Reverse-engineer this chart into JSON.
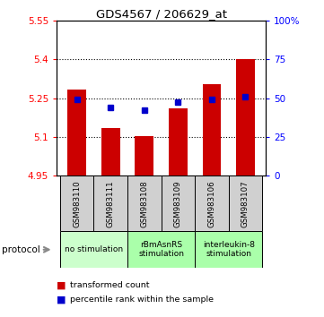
{
  "title": "GDS4567 / 206629_at",
  "samples": [
    "GSM983110",
    "GSM983111",
    "GSM983108",
    "GSM983109",
    "GSM983106",
    "GSM983107"
  ],
  "bar_values": [
    5.285,
    5.135,
    5.105,
    5.21,
    5.305,
    5.4
  ],
  "bar_bottom": 4.95,
  "percentile_values": [
    5.245,
    5.215,
    5.205,
    5.235,
    5.245,
    5.255
  ],
  "ymin": 4.95,
  "ymax": 5.55,
  "y2min": 0,
  "y2max": 100,
  "yticks": [
    4.95,
    5.1,
    5.25,
    5.4,
    5.55
  ],
  "ytick_labels": [
    "4.95",
    "5.1",
    "5.25",
    "5.4",
    "5.55"
  ],
  "y2ticks": [
    0,
    25,
    50,
    75,
    100
  ],
  "y2tick_labels": [
    "0",
    "25",
    "50",
    "75",
    "100%"
  ],
  "bar_color": "#cc0000",
  "percentile_color": "#0000cc",
  "groups": [
    {
      "label": "no stimulation",
      "start": 0,
      "end": 2,
      "color": "#ccffcc"
    },
    {
      "label": "rBmAsnRS\nstimulation",
      "start": 2,
      "end": 4,
      "color": "#aaffaa"
    },
    {
      "label": "interleukin-8\nstimulation",
      "start": 4,
      "end": 6,
      "color": "#aaffaa"
    }
  ],
  "protocol_label": "protocol",
  "legend_red_label": "transformed count",
  "legend_blue_label": "percentile rank within the sample",
  "sample_box_color": "#d0d0d0",
  "grid_dotted": [
    5.1,
    5.25,
    5.4
  ]
}
